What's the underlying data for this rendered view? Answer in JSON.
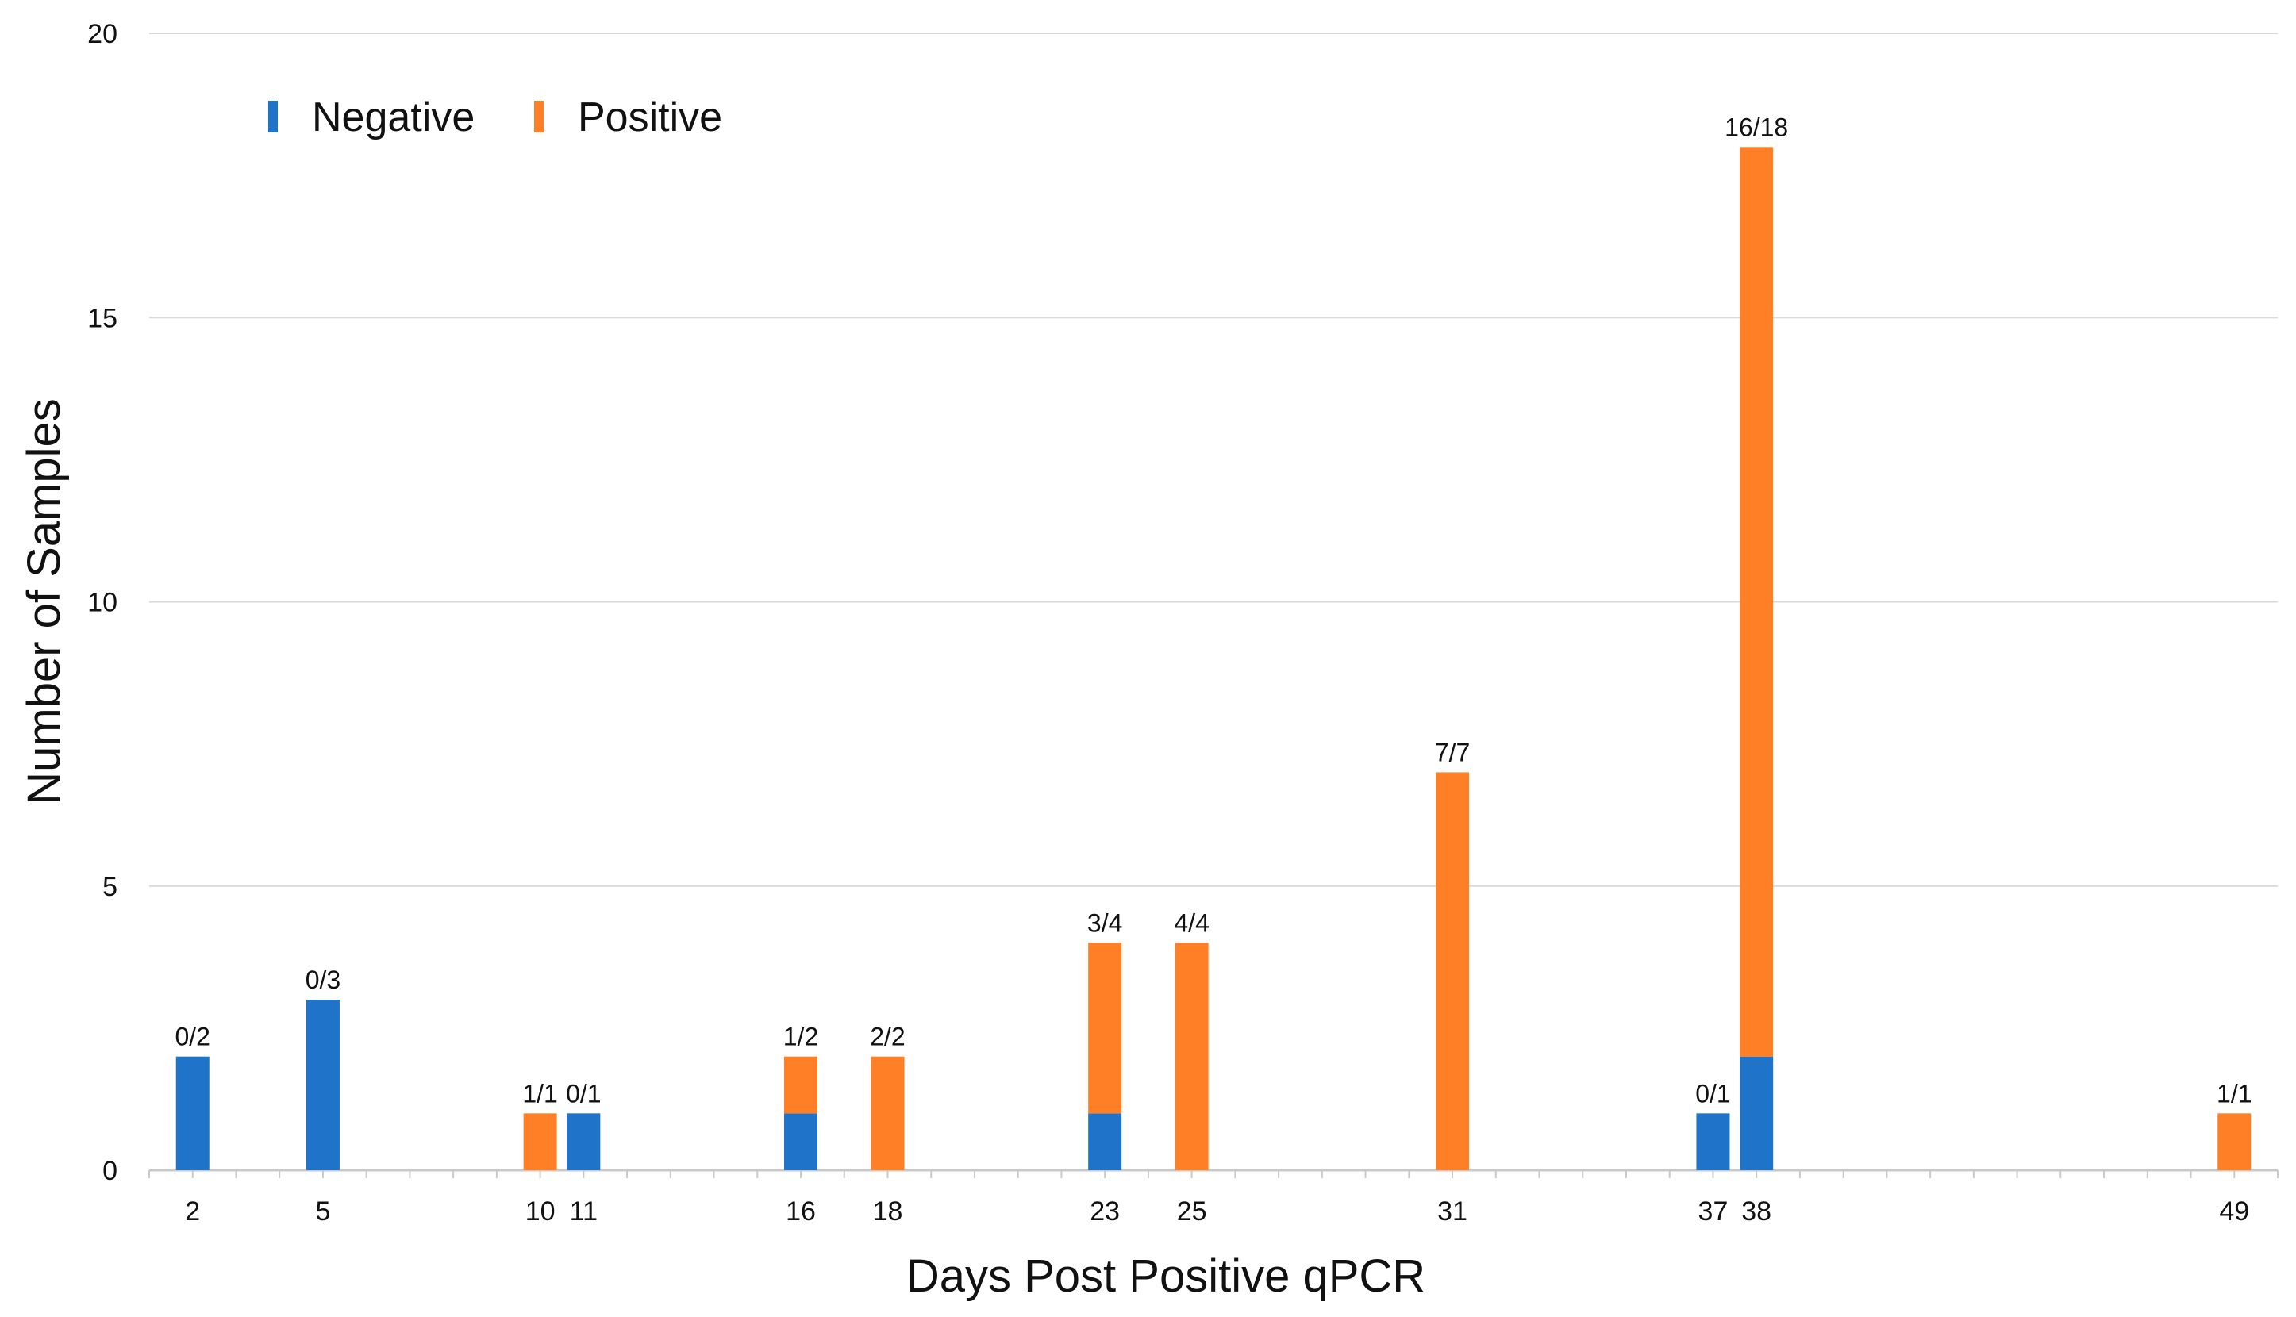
{
  "chart_data": {
    "type": "bar",
    "stacked": true,
    "title": "",
    "xlabel": "Days Post Positive qPCR",
    "ylabel": "Number of Samples",
    "ylim": [
      0,
      20
    ],
    "yticks": [
      0,
      5,
      10,
      15,
      20
    ],
    "ytick_labels": [
      "0",
      "5",
      "10",
      "15",
      "20"
    ],
    "xlim": [
      1,
      50
    ],
    "grid": true,
    "legend": {
      "position": "top-left"
    },
    "x": [
      2,
      5,
      10,
      11,
      16,
      18,
      23,
      25,
      31,
      37,
      38,
      49
    ],
    "xtick_labels": [
      "2",
      "5",
      "10",
      "11",
      "16",
      "18",
      "23",
      "25",
      "31",
      "37",
      "38",
      "49"
    ],
    "series": [
      {
        "name": "Negative",
        "color": "#1f73c9",
        "values": [
          2,
          3,
          0,
          1,
          1,
          0,
          1,
          0,
          0,
          1,
          2,
          0
        ]
      },
      {
        "name": "Positive",
        "color": "#ff7f27",
        "values": [
          0,
          0,
          1,
          0,
          1,
          2,
          3,
          4,
          7,
          0,
          16,
          1
        ]
      }
    ],
    "data_labels": [
      "0/2",
      "0/3",
      "1/1",
      "0/1",
      "1/2",
      "2/2",
      "3/4",
      "4/4",
      "7/7",
      "0/1",
      "16/18",
      "1/1"
    ],
    "colors": {
      "text": "#111111",
      "grid": "#d9d9d9",
      "axis": "#c9c9c9"
    }
  }
}
